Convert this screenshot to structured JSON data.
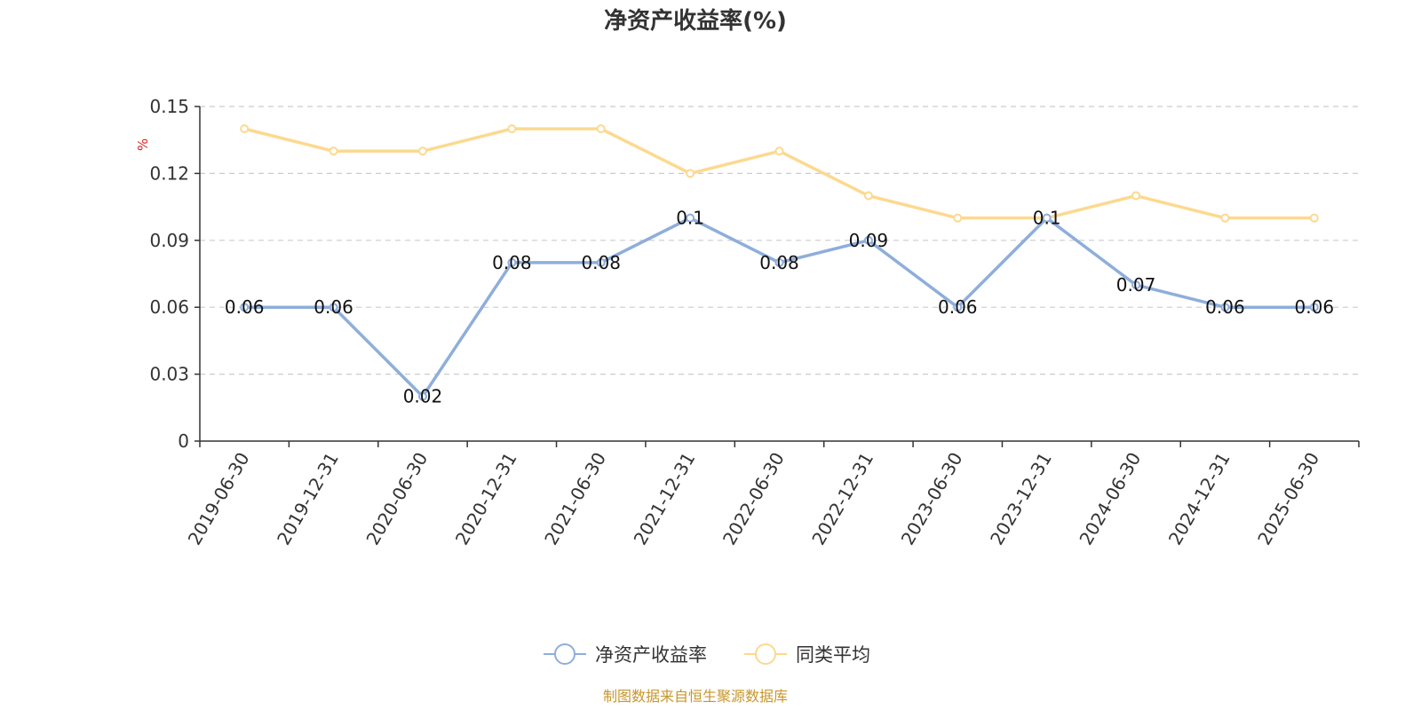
{
  "chart_data": {
    "type": "line",
    "title": "净资产收益率(%)",
    "y_unit": "%",
    "ylim": [
      0,
      0.15
    ],
    "y_ticks": [
      "0",
      "0.03",
      "0.06",
      "0.09",
      "0.12",
      "0.15"
    ],
    "y_tick_values": [
      0,
      0.03,
      0.06,
      0.09,
      0.12,
      0.15
    ],
    "grid": "horizontal-dashed",
    "legend_position": "bottom-center",
    "categories": [
      "2019-06-30",
      "2019-12-31",
      "2020-06-30",
      "2020-12-31",
      "2021-06-30",
      "2021-12-31",
      "2022-06-30",
      "2022-12-31",
      "2023-06-30",
      "2023-12-31",
      "2024-06-30",
      "2024-12-31",
      "2025-06-30"
    ],
    "series": [
      {
        "name": "净资产收益率",
        "color": "#8eaedb",
        "values": [
          0.06,
          0.06,
          0.02,
          0.08,
          0.08,
          0.1,
          0.08,
          0.09,
          0.06,
          0.1,
          0.07,
          0.06,
          0.06
        ],
        "labels": [
          "0.06",
          "0.06",
          "0.02",
          "0.08",
          "0.08",
          "0.1",
          "0.08",
          "0.09",
          "0.06",
          "0.1",
          "0.07",
          "0.06",
          "0.06"
        ]
      },
      {
        "name": "同类平均",
        "color": "#fcd98f",
        "values": [
          0.14,
          0.13,
          0.13,
          0.14,
          0.14,
          0.12,
          0.13,
          0.11,
          0.1,
          0.1,
          0.11,
          0.1,
          0.1
        ]
      }
    ]
  },
  "footer": {
    "source": "制图数据来自恒生聚源数据库"
  }
}
